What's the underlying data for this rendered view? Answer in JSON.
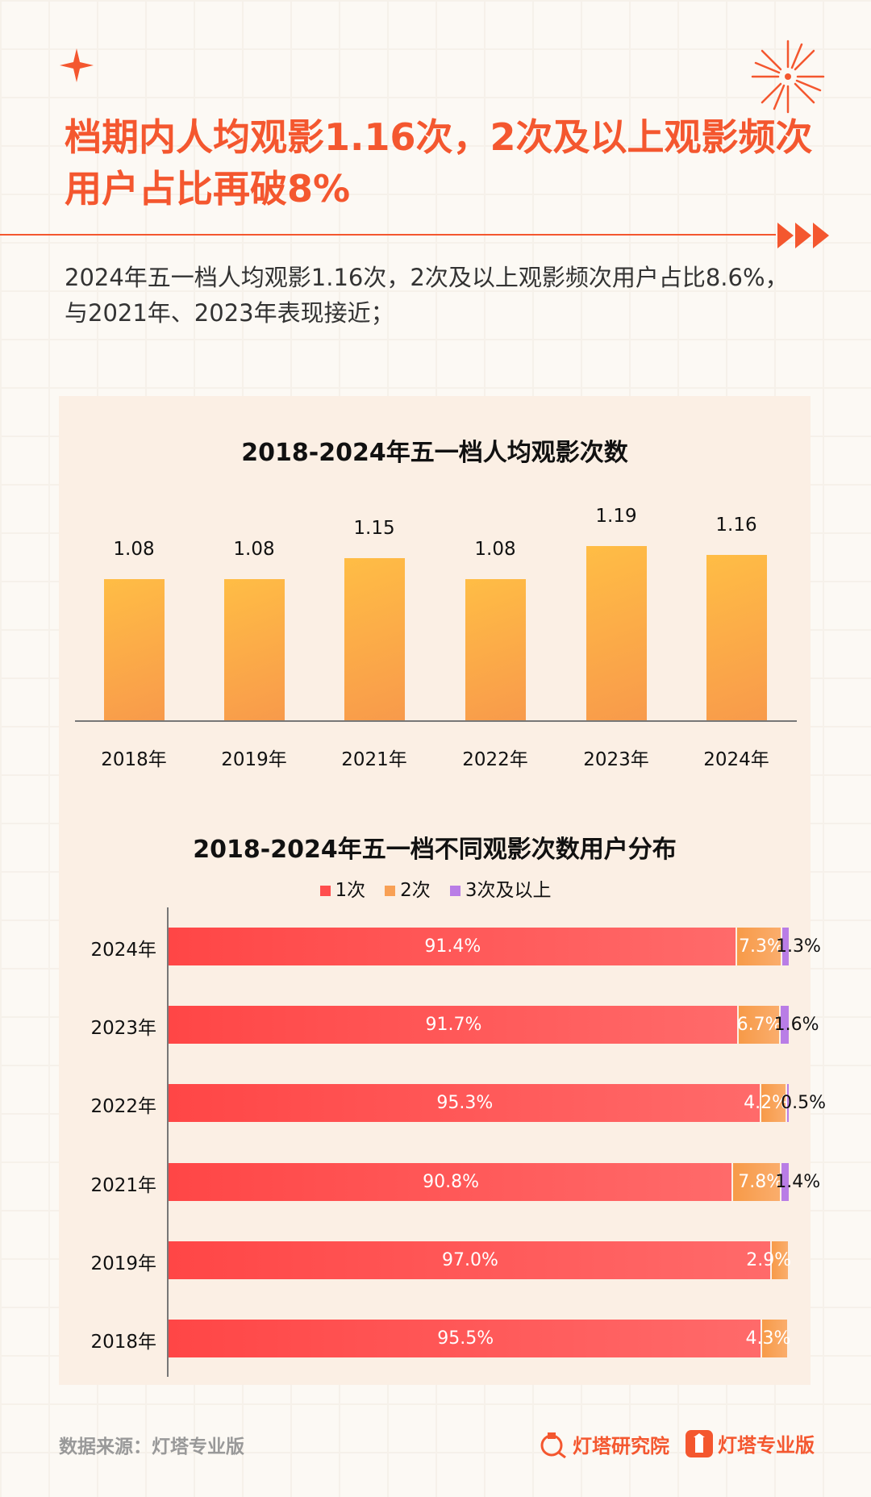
{
  "header": {
    "title": "档期内人均观影1.16次，2次及以上观影频次用户占比再破8%",
    "subtitle": "2024年五一档人均观影1.16次，2次及以上观影频次用户占比8.6%，与2021年、2023年表现接近；"
  },
  "chart_data": [
    {
      "type": "bar",
      "title": "2018-2024年五一档人均观影次数",
      "categories": [
        "2018年",
        "2019年",
        "2021年",
        "2022年",
        "2023年",
        "2024年"
      ],
      "values": [
        1.08,
        1.08,
        1.15,
        1.08,
        1.19,
        1.16
      ],
      "value_labels": [
        "1.08",
        "1.08",
        "1.15",
        "1.08",
        "1.19",
        "1.16"
      ],
      "ylim": [
        0.61,
        1.3
      ],
      "colors": {
        "bar_start": "#ffbd45",
        "bar_end": "#f89a4b"
      }
    },
    {
      "type": "bar",
      "orientation": "horizontal-stacked",
      "title": "2018-2024年五一档不同观影次数用户分布",
      "legend": [
        "1次",
        "2次",
        "3次及以上"
      ],
      "legend_position": "top",
      "colors": [
        "#ff4d4d",
        "#f8a055",
        "#b97de6"
      ],
      "categories": [
        "2024年",
        "2023年",
        "2022年",
        "2021年",
        "2019年",
        "2018年"
      ],
      "series": [
        {
          "name": "1次",
          "values": [
            91.4,
            91.7,
            95.3,
            90.8,
            97.0,
            95.5
          ],
          "labels": [
            "91.4%",
            "91.7%",
            "95.3%",
            "90.8%",
            "97.0%",
            "95.5%"
          ]
        },
        {
          "name": "2次",
          "values": [
            7.3,
            6.7,
            4.2,
            7.8,
            2.9,
            4.3
          ],
          "labels": [
            "7.3%",
            "6.7%",
            "4.2%",
            "7.8%",
            "2.9%",
            "4.3%"
          ]
        },
        {
          "name": "3次及以上",
          "values": [
            1.3,
            1.6,
            0.5,
            1.4,
            0,
            0
          ],
          "labels": [
            "1.3%",
            "1.6%",
            "0.5%",
            "1.4%",
            "",
            ""
          ]
        }
      ],
      "xlim": [
        0,
        100
      ]
    }
  ],
  "footer": {
    "source": "数据来源：灯塔专业版",
    "brand1": "灯塔研究院",
    "brand2": "灯塔专业版"
  }
}
